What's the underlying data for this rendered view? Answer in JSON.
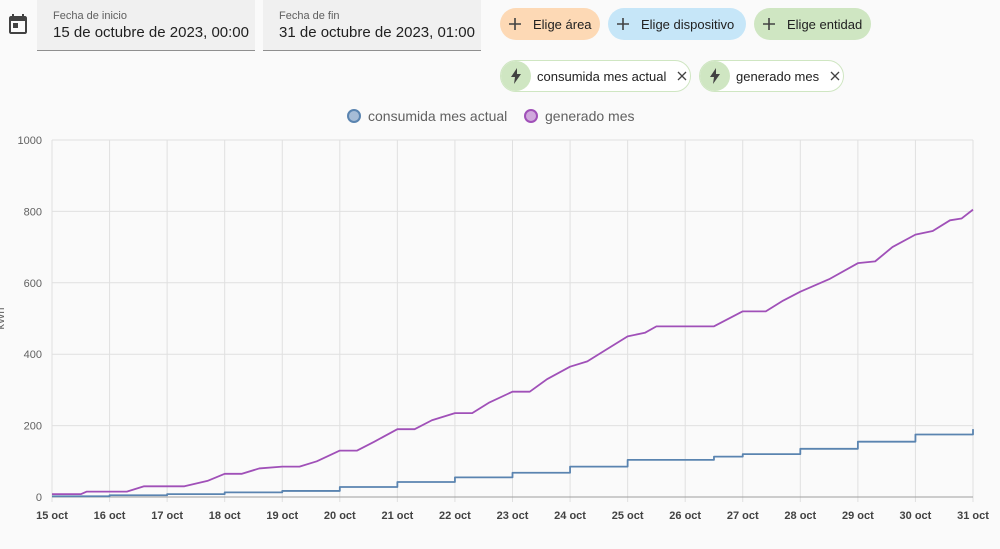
{
  "date_range": {
    "start_label": "Fecha de inicio",
    "start_value": "15 de octubre de 2023, 00:00",
    "end_label": "Fecha de fin",
    "end_value": "31 de octubre de 2023, 01:00"
  },
  "icons": {
    "calendar": "calendar-icon",
    "plus": "plus-icon",
    "flash": "flash-icon",
    "close": "close-icon"
  },
  "target_chips": [
    {
      "label": "Elige área",
      "color": "#fdd9b5"
    },
    {
      "label": "Elige dispositivo",
      "color": "#c6e6f8"
    },
    {
      "label": "Elige entidad",
      "color": "#cfe6c2"
    }
  ],
  "entity_chips": [
    {
      "label": "consumida mes actual"
    },
    {
      "label": "generado mes"
    }
  ],
  "chart_data": {
    "type": "line",
    "ylabel": "kWh",
    "ylim": [
      0,
      1000
    ],
    "yticks": [
      0,
      200,
      400,
      600,
      800,
      1000
    ],
    "xticks": [
      "15 oct",
      "16 oct",
      "17 oct",
      "18 oct",
      "19 oct",
      "20 oct",
      "21 oct",
      "22 oct",
      "23 oct",
      "24 oct",
      "25 oct",
      "26 oct",
      "27 oct",
      "28 oct",
      "29 oct",
      "30 oct",
      "31 oct"
    ],
    "xlim": [
      0,
      16
    ],
    "grid": true,
    "legend_position": "top",
    "series": [
      {
        "name": "consumida mes actual",
        "color": "#5a84b0",
        "step": true,
        "points": [
          [
            0,
            2
          ],
          [
            1,
            5
          ],
          [
            2,
            8
          ],
          [
            3,
            13
          ],
          [
            4,
            17
          ],
          [
            5,
            28
          ],
          [
            6,
            42
          ],
          [
            7,
            55
          ],
          [
            8,
            68
          ],
          [
            9,
            85
          ],
          [
            10,
            104
          ],
          [
            11,
            104
          ],
          [
            11.5,
            113
          ],
          [
            12,
            120
          ],
          [
            13,
            135
          ],
          [
            14,
            155
          ],
          [
            15,
            175
          ],
          [
            16,
            190
          ]
        ]
      },
      {
        "name": "generado mes",
        "color": "#a050b8",
        "step": false,
        "points": [
          [
            0,
            8
          ],
          [
            0.5,
            8
          ],
          [
            0.6,
            15
          ],
          [
            1,
            15
          ],
          [
            1.3,
            15
          ],
          [
            1.6,
            30
          ],
          [
            2,
            30
          ],
          [
            2.3,
            30
          ],
          [
            2.7,
            45
          ],
          [
            3,
            65
          ],
          [
            3.3,
            65
          ],
          [
            3.6,
            80
          ],
          [
            4,
            85
          ],
          [
            4.3,
            85
          ],
          [
            4.6,
            100
          ],
          [
            5,
            130
          ],
          [
            5.3,
            130
          ],
          [
            5.6,
            155
          ],
          [
            6,
            190
          ],
          [
            6.3,
            190
          ],
          [
            6.6,
            215
          ],
          [
            7,
            235
          ],
          [
            7.3,
            235
          ],
          [
            7.6,
            265
          ],
          [
            8,
            295
          ],
          [
            8.3,
            295
          ],
          [
            8.6,
            330
          ],
          [
            9,
            365
          ],
          [
            9.3,
            380
          ],
          [
            9.6,
            410
          ],
          [
            10,
            450
          ],
          [
            10.3,
            460
          ],
          [
            10.5,
            478
          ],
          [
            11,
            478
          ],
          [
            11.5,
            478
          ],
          [
            12,
            520
          ],
          [
            12.4,
            520
          ],
          [
            12.7,
            550
          ],
          [
            13,
            575
          ],
          [
            13.5,
            610
          ],
          [
            14,
            655
          ],
          [
            14.3,
            660
          ],
          [
            14.6,
            700
          ],
          [
            15,
            735
          ],
          [
            15.3,
            745
          ],
          [
            15.6,
            775
          ],
          [
            15.8,
            780
          ],
          [
            16,
            805
          ]
        ]
      }
    ]
  }
}
